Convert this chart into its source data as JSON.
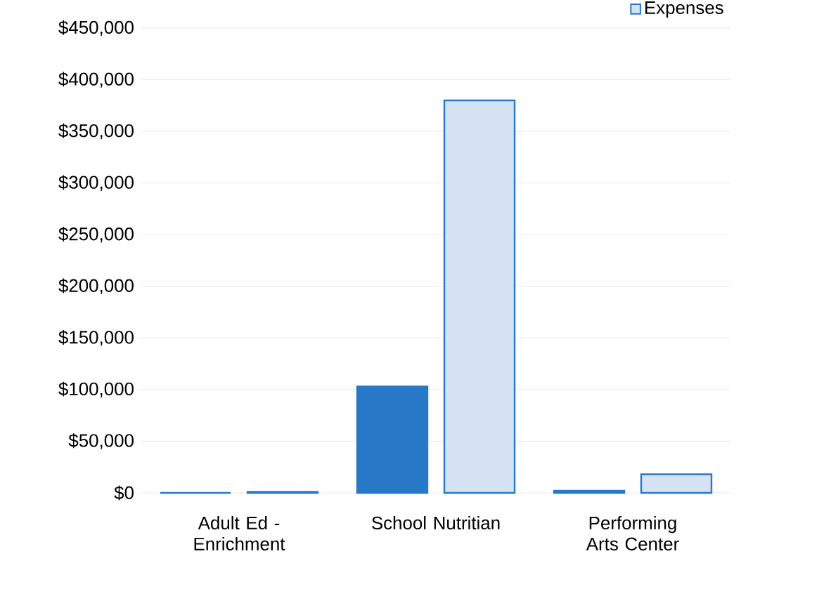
{
  "chart_data": {
    "type": "bar",
    "categories": [
      "Adult Ed - Enrichment",
      "School Nutritian",
      "Performing Arts Center"
    ],
    "series": [
      {
        "color": "#2878c8",
        "values": [
          0,
          103000,
          2000
        ]
      },
      {
        "name": "Expenses",
        "color": "#d4e2f4",
        "values": [
          1000,
          380000,
          18000
        ]
      }
    ],
    "ylim": [
      0,
      450000
    ],
    "yticks": [
      {
        "value": 0,
        "label": "$0"
      },
      {
        "value": 50000,
        "label": "$50,000"
      },
      {
        "value": 100000,
        "label": "$100,000"
      },
      {
        "value": 150000,
        "label": "$150,000"
      },
      {
        "value": 200000,
        "label": "$200,000"
      },
      {
        "value": 250000,
        "label": "$250,000"
      },
      {
        "value": 300000,
        "label": "$300,000"
      },
      {
        "value": 350000,
        "label": "$350,000"
      },
      {
        "value": 400000,
        "label": "$400,000"
      },
      {
        "value": 450000,
        "label": "$450,000"
      }
    ],
    "grid": "y",
    "legend": "top right"
  }
}
